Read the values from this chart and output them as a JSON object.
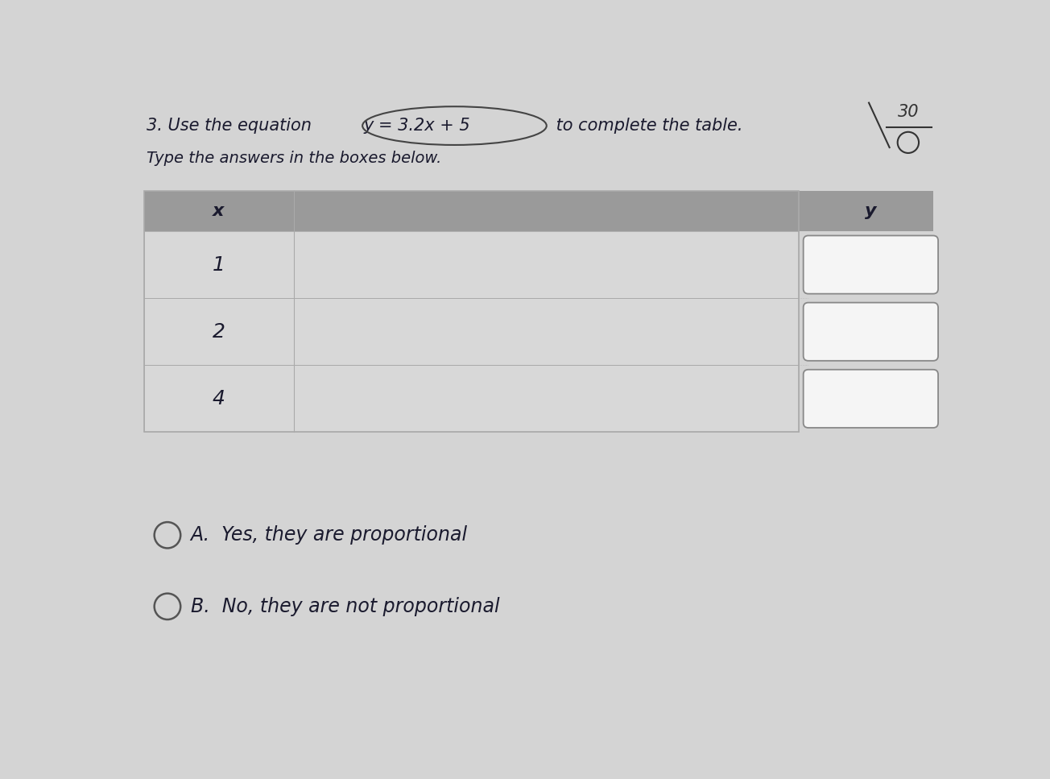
{
  "title_number": "3.",
  "equation": "y = 3.2x + 5",
  "title_end": " to complete the table.",
  "subtitle": "Type the answers in the boxes below.",
  "header_x": "x",
  "header_y": "y",
  "x_values": [
    "1",
    "2",
    "4"
  ],
  "score_text": "30",
  "score_denom": "0",
  "option_a": "A.  Yes, they are proportional",
  "option_b": "B.  No, they are not proportional",
  "page_bg": "#d4d4d4",
  "table_header_bg": "#9a9a9a",
  "table_row_bg_light": "#d8d8d8",
  "table_row_bg_dark": "#cccccc",
  "table_border_color": "#aaaaaa",
  "box_fill": "#f5f5f5",
  "box_edge": "#888888",
  "text_color": "#1a1a2e"
}
